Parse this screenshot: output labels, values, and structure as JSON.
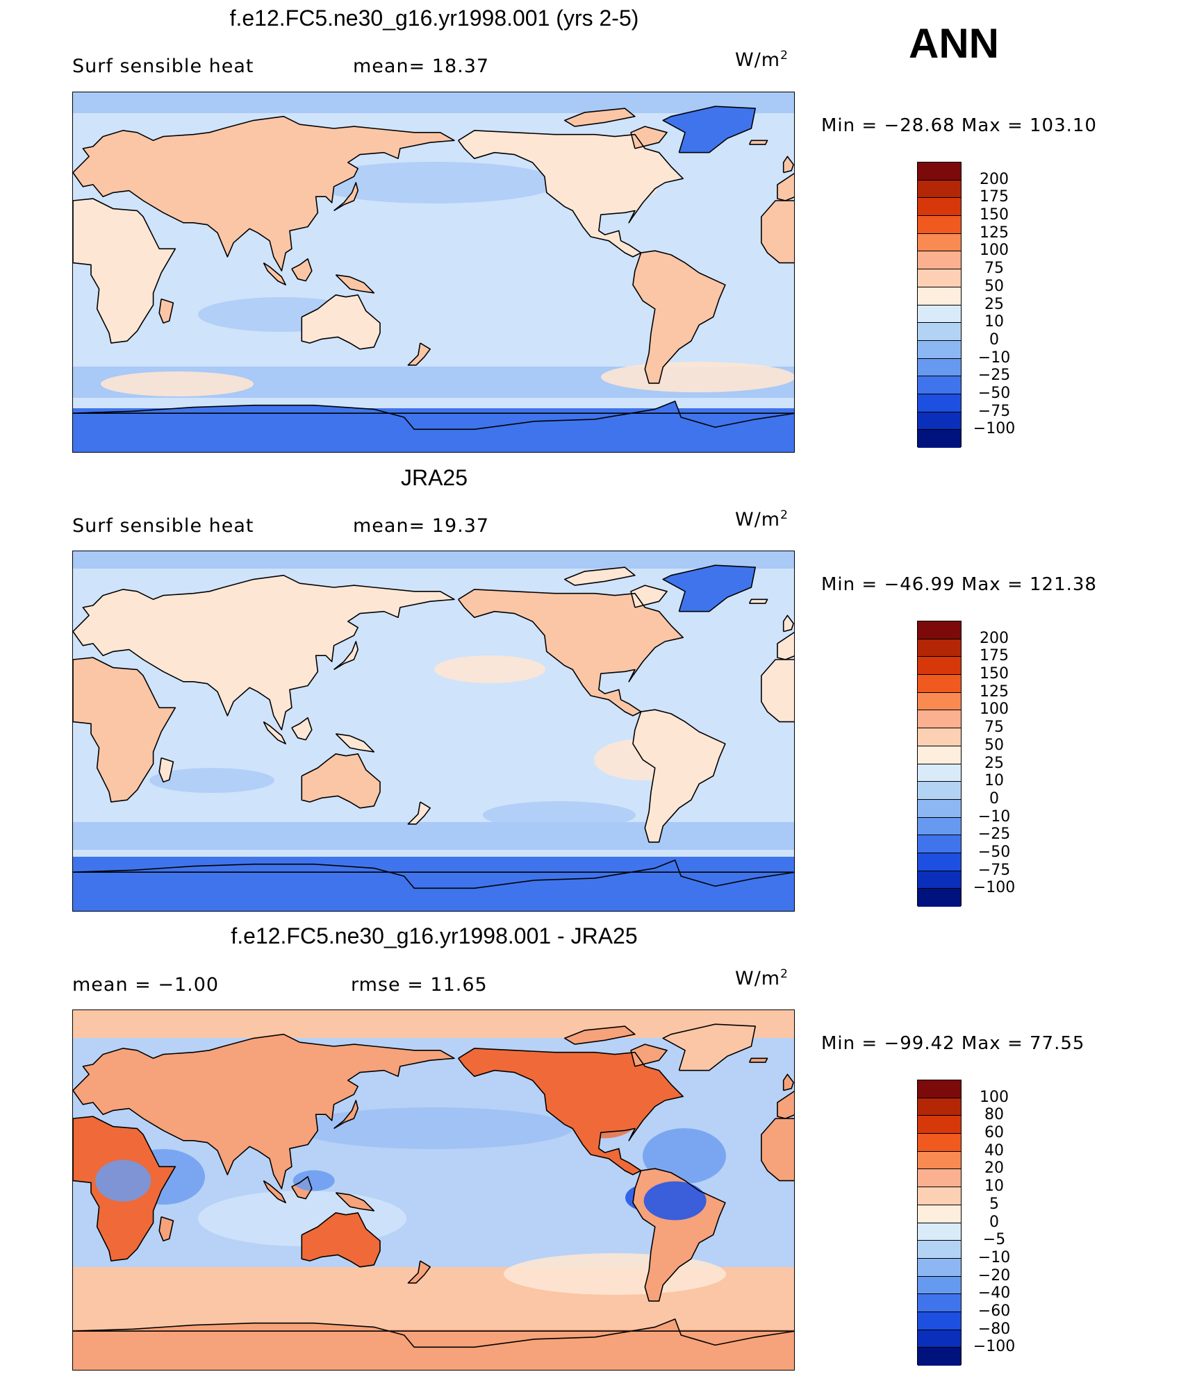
{
  "season": "ANN",
  "units": {
    "base": "W/m",
    "exp": "2"
  },
  "panels": [
    {
      "title": "f.e12.FC5.ne30_g16.yr1998.001 (yrs 2-5)",
      "left_label": "Surf  sensible  heat",
      "right_label": "mean=   18.37",
      "minmax": "Min  =  −28.68  Max  =  103.10",
      "colorbar": {
        "labels": [
          "200",
          "175",
          "150",
          "125",
          "100",
          "75",
          "50",
          "25",
          "10",
          "0",
          "−10",
          "−25",
          "−50",
          "−75",
          "−100"
        ],
        "colors": [
          "#7d0a0a",
          "#b32606",
          "#d6380a",
          "#f05a1e",
          "#f88a52",
          "#fbb08f",
          "#fdd0b3",
          "#fdeedd",
          "#d9eaf9",
          "#b3d3f5",
          "#8cb7f2",
          "#6699f0",
          "#3f74ec",
          "#1d4fe0",
          "#0a2fba",
          "#00127d"
        ]
      }
    },
    {
      "title": "JRA25",
      "left_label": "Surf  sensible  heat",
      "right_label": "mean=   19.37",
      "minmax": "Min  =  −46.99  Max  =  121.38",
      "colorbar": {
        "labels": [
          "200",
          "175",
          "150",
          "125",
          "100",
          "75",
          "50",
          "25",
          "10",
          "0",
          "−10",
          "−25",
          "−50",
          "−75",
          "−100"
        ],
        "colors": [
          "#7d0a0a",
          "#b32606",
          "#d6380a",
          "#f05a1e",
          "#f88a52",
          "#fbb08f",
          "#fdd0b3",
          "#fdeedd",
          "#d9eaf9",
          "#b3d3f5",
          "#8cb7f2",
          "#6699f0",
          "#3f74ec",
          "#1d4fe0",
          "#0a2fba",
          "#00127d"
        ]
      }
    },
    {
      "title": "f.e12.FC5.ne30_g16.yr1998.001 - JRA25",
      "left_label": "mean  =    −1.00",
      "right_label": "rmse  =    11.65",
      "minmax": "Min  =  −99.42  Max  =    77.55",
      "colorbar": {
        "labels": [
          "100",
          "80",
          "60",
          "40",
          "20",
          "10",
          "5",
          "0",
          "−5",
          "−10",
          "−20",
          "−40",
          "−60",
          "−80",
          "−100"
        ],
        "colors": [
          "#7d0a0a",
          "#b32606",
          "#d6380a",
          "#f05a1e",
          "#f88a52",
          "#fbb08f",
          "#fdd0b3",
          "#fdeedd",
          "#d9eaf9",
          "#b3d3f5",
          "#8cb7f2",
          "#6699f0",
          "#3f74ec",
          "#1d4fe0",
          "#0a2fba",
          "#00127d"
        ]
      }
    }
  ],
  "palette": {
    "ocean_light": "#cfe3fb",
    "ocean_mid": "#a9c9f6",
    "polar": "#3f74ec",
    "land_warm": "#fbc6a6",
    "land_light": "#fde6d4",
    "diff_warm": "#f6a27a",
    "diff_hot": "#ef6a38",
    "diff_cool": "#6a9bf0",
    "diff_cold": "#2756e6",
    "coast": "#000000"
  }
}
